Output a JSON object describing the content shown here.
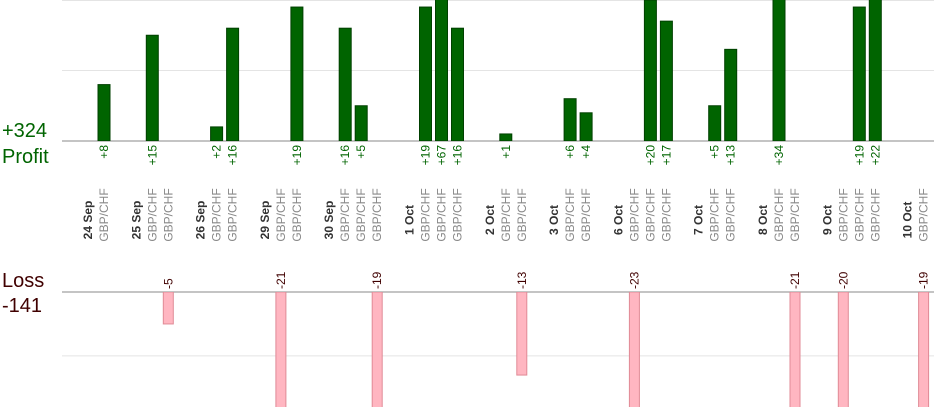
{
  "chart_data": {
    "type": "bar",
    "profit": {
      "label": "Profit",
      "total": {
        "value": 324,
        "label": "+324"
      },
      "color": "#006400",
      "ylim": [
        0,
        20
      ],
      "yticks": [
        0,
        10,
        20
      ]
    },
    "loss": {
      "label": "Loss",
      "total": -141,
      "color": "#ffb6c1",
      "ylim": [
        -18,
        0
      ],
      "yticks": [
        -10,
        0
      ]
    },
    "grid": true,
    "days": [
      {
        "date": "24 Sep",
        "pairs": [
          "GBP/CHF"
        ],
        "values": [
          8
        ],
        "value_labels": [
          "+8"
        ]
      },
      {
        "date": "25 Sep",
        "pairs": [
          "GBP/CHF",
          "GBP/CHF"
        ],
        "values": [
          15,
          -5
        ],
        "value_labels": [
          "+15",
          "-5"
        ]
      },
      {
        "date": "26 Sep",
        "pairs": [
          "GBP/CHF",
          "GBP/CHF"
        ],
        "values": [
          2,
          16
        ],
        "value_labels": [
          "+2",
          "+16"
        ]
      },
      {
        "date": "29 Sep",
        "pairs": [
          "GBP/CHF",
          "GBP/CHF"
        ],
        "values": [
          -21,
          19
        ],
        "value_labels": [
          "-21",
          "+19"
        ]
      },
      {
        "date": "30 Sep",
        "pairs": [
          "GBP/CHF",
          "GBP/CHF",
          "GBP/CHF"
        ],
        "values": [
          16,
          5,
          -19
        ],
        "value_labels": [
          "+16",
          "+5",
          "-19"
        ]
      },
      {
        "date": "1 Oct",
        "pairs": [
          "GBP/CHF",
          "GBP/CHF",
          "GBP/CHF"
        ],
        "values": [
          19,
          67,
          16
        ],
        "value_labels": [
          "+19",
          "+67",
          "+16"
        ]
      },
      {
        "date": "2 Oct",
        "pairs": [
          "GBP/CHF",
          "GBP/CHF"
        ],
        "values": [
          1,
          -13
        ],
        "value_labels": [
          "+1",
          "-13"
        ]
      },
      {
        "date": "3 Oct",
        "pairs": [
          "GBP/CHF",
          "GBP/CHF"
        ],
        "values": [
          6,
          4
        ],
        "value_labels": [
          "+6",
          "+4"
        ]
      },
      {
        "date": "6 Oct",
        "pairs": [
          "GBP/CHF",
          "GBP/CHF",
          "GBP/CHF"
        ],
        "values": [
          -23,
          20,
          17
        ],
        "value_labels": [
          "-23",
          "+20",
          "+17"
        ]
      },
      {
        "date": "7 Oct",
        "pairs": [
          "GBP/CHF",
          "GBP/CHF"
        ],
        "values": [
          5,
          13
        ],
        "value_labels": [
          "+5",
          "+13"
        ]
      },
      {
        "date": "8 Oct",
        "pairs": [
          "GBP/CHF",
          "GBP/CHF"
        ],
        "values": [
          34,
          -21
        ],
        "value_labels": [
          "+34",
          "-21"
        ]
      },
      {
        "date": "9 Oct",
        "pairs": [
          "GBP/CHF",
          "GBP/CHF",
          "GBP/CHF"
        ],
        "values": [
          -20,
          19,
          22
        ],
        "value_labels": [
          "-20",
          "+19",
          "+22"
        ]
      },
      {
        "date": "10 Oct",
        "pairs": [
          "GBP/CHF"
        ],
        "values": [
          -19
        ],
        "value_labels": [
          "-19"
        ]
      }
    ]
  }
}
